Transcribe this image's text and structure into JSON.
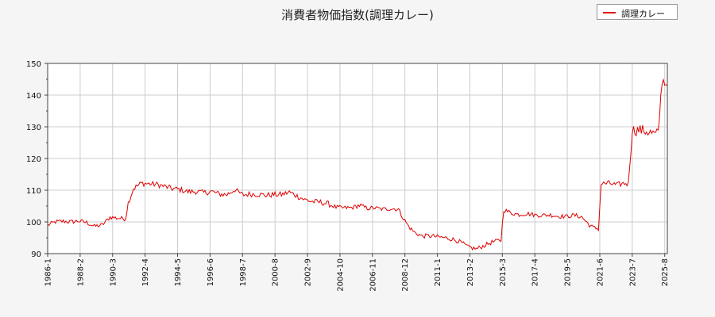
{
  "chart_data": {
    "type": "line",
    "title": "消費者物価指数(調理カレー)",
    "legend_position": "top-right",
    "grid": true,
    "colors": {
      "series": "#e00000",
      "grid": "#cccccc",
      "background": "#ffffff"
    },
    "ylim": [
      90,
      150
    ],
    "y_ticks": [
      "90",
      "100",
      "110",
      "120",
      "130",
      "140",
      "150"
    ],
    "x_range": [
      "1986-01",
      "2025-10"
    ],
    "x_ticks": [
      "1986-1",
      "1988-2",
      "1990-3",
      "1992-4",
      "1994-5",
      "1996-6",
      "1998-7",
      "2000-8",
      "2002-9",
      "2004-10",
      "2006-11",
      "2008-12",
      "2011-1",
      "2013-2",
      "2015-3",
      "2017-4",
      "2019-5",
      "2021-6",
      "2023-7",
      "2025-8"
    ],
    "series": [
      {
        "name": "調理カレー",
        "points": [
          [
            "1986-01",
            99.0
          ],
          [
            "1986-07",
            100.0
          ],
          [
            "1987-01",
            100.2
          ],
          [
            "1987-07",
            100.0
          ],
          [
            "1988-01",
            100.3
          ],
          [
            "1988-07",
            99.8
          ],
          [
            "1989-01",
            98.6
          ],
          [
            "1989-07",
            99.0
          ],
          [
            "1990-01",
            101.5
          ],
          [
            "1990-07",
            101.2
          ],
          [
            "1991-01",
            101.0
          ],
          [
            "1991-03",
            106.0
          ],
          [
            "1991-07",
            110.5
          ],
          [
            "1992-01",
            112.2
          ],
          [
            "1992-07",
            112.0
          ],
          [
            "1993-01",
            111.8
          ],
          [
            "1993-07",
            111.2
          ],
          [
            "1994-01",
            110.5
          ],
          [
            "1994-07",
            110.2
          ],
          [
            "1995-01",
            109.5
          ],
          [
            "1995-07",
            109.6
          ],
          [
            "1996-01",
            109.2
          ],
          [
            "1996-07",
            109.6
          ],
          [
            "1997-01",
            108.8
          ],
          [
            "1997-07",
            108.6
          ],
          [
            "1998-01",
            110.2
          ],
          [
            "1998-07",
            108.5
          ],
          [
            "1999-01",
            108.8
          ],
          [
            "1999-07",
            108.7
          ],
          [
            "2000-01",
            108.4
          ],
          [
            "2000-07",
            108.6
          ],
          [
            "2001-01",
            108.6
          ],
          [
            "2001-07",
            109.4
          ],
          [
            "2002-01",
            108.2
          ],
          [
            "2002-07",
            107.0
          ],
          [
            "2003-01",
            106.4
          ],
          [
            "2003-07",
            106.2
          ],
          [
            "2004-01",
            105.7
          ],
          [
            "2004-07",
            104.6
          ],
          [
            "2005-01",
            104.4
          ],
          [
            "2005-07",
            104.5
          ],
          [
            "2006-01",
            105.2
          ],
          [
            "2006-07",
            104.3
          ],
          [
            "2007-01",
            104.4
          ],
          [
            "2007-07",
            104.0
          ],
          [
            "2008-01",
            104.2
          ],
          [
            "2008-07",
            104.0
          ],
          [
            "2008-11",
            101.0
          ],
          [
            "2009-03",
            98.5
          ],
          [
            "2009-07",
            96.8
          ],
          [
            "2010-01",
            95.5
          ],
          [
            "2010-07",
            95.6
          ],
          [
            "2011-01",
            95.3
          ],
          [
            "2011-07",
            95.0
          ],
          [
            "2012-01",
            94.5
          ],
          [
            "2012-07",
            93.6
          ],
          [
            "2013-01",
            92.0
          ],
          [
            "2013-07",
            91.5
          ],
          [
            "2014-01",
            92.5
          ],
          [
            "2014-07",
            93.6
          ],
          [
            "2015-01",
            94.2
          ],
          [
            "2015-02",
            94.3
          ],
          [
            "2015-04",
            103.8
          ],
          [
            "2015-10",
            102.8
          ],
          [
            "2016-04",
            102.3
          ],
          [
            "2016-10",
            102.6
          ],
          [
            "2017-04",
            102.2
          ],
          [
            "2017-10",
            102.1
          ],
          [
            "2018-04",
            102.2
          ],
          [
            "2018-10",
            101.8
          ],
          [
            "2019-04",
            101.7
          ],
          [
            "2019-10",
            102.1
          ],
          [
            "2020-04",
            101.6
          ],
          [
            "2020-10",
            99.0
          ],
          [
            "2021-01",
            98.2
          ],
          [
            "2021-05",
            97.8
          ],
          [
            "2021-07",
            112.0
          ],
          [
            "2022-01",
            112.2
          ],
          [
            "2022-07",
            111.6
          ],
          [
            "2023-01",
            112.2
          ],
          [
            "2023-04",
            112.0
          ],
          [
            "2023-07",
            129.0
          ],
          [
            "2024-01",
            129.0
          ],
          [
            "2024-07",
            128.5
          ],
          [
            "2025-01",
            127.5
          ],
          [
            "2025-03",
            128.0
          ],
          [
            "2025-06",
            145.0
          ],
          [
            "2025-10",
            143.0
          ]
        ]
      }
    ]
  }
}
